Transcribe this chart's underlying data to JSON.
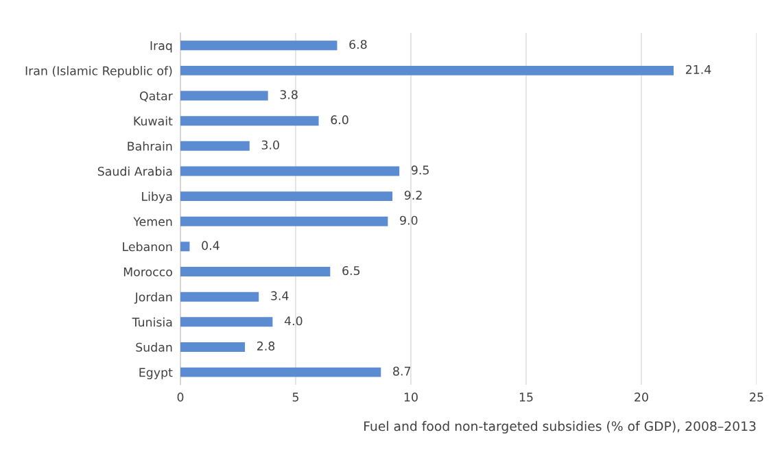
{
  "chart_data": {
    "type": "bar",
    "orientation": "horizontal",
    "categories": [
      "Iraq",
      "Iran (Islamic Republic of)",
      "Qatar",
      "Kuwait",
      "Bahrain",
      "Saudi Arabia",
      "Libya",
      "Yemen",
      "Lebanon",
      "Morocco",
      "Jordan",
      "Tunisia",
      "Sudan",
      "Egypt"
    ],
    "values": [
      6.8,
      21.4,
      3.8,
      6.0,
      3.0,
      9.5,
      9.2,
      9.0,
      0.4,
      6.5,
      3.4,
      4.0,
      2.8,
      8.7
    ],
    "value_labels": [
      "6.8",
      "21.4",
      "3.8",
      "6.0",
      "3.0",
      "9.5",
      "9.2",
      "9.0",
      "0.4",
      "6.5",
      "3.4",
      "4.0",
      "2.8",
      "8.7"
    ],
    "color": "#5b8bd0",
    "xlim": [
      0,
      25
    ],
    "xticks": [
      0,
      5,
      10,
      15,
      20,
      25
    ],
    "xlabel": "Fuel and food non-targeted subsidies (% of GDP), 2008–2013",
    "grid": "x",
    "legend": false
  }
}
